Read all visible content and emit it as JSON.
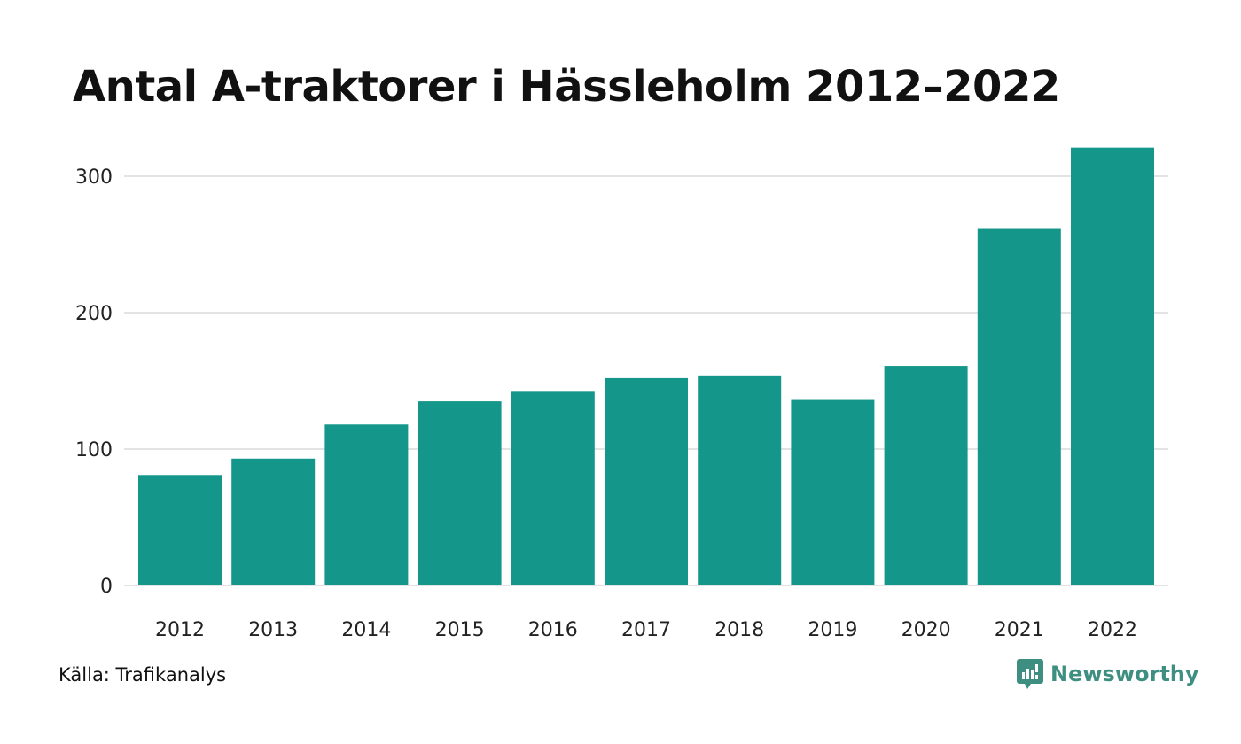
{
  "chart_data": {
    "type": "bar",
    "title": "Antal A-traktorer i Hässleholm 2012–2022",
    "categories": [
      "2012",
      "2013",
      "2014",
      "2015",
      "2016",
      "2017",
      "2018",
      "2019",
      "2020",
      "2021",
      "2022"
    ],
    "values": [
      81,
      93,
      118,
      135,
      142,
      152,
      154,
      136,
      161,
      262,
      321
    ],
    "xlabel": "",
    "ylabel": "",
    "ylim": [
      0,
      320
    ],
    "yticks": [
      0,
      100,
      200,
      300
    ],
    "grid": true,
    "bar_color": "#14978a",
    "grid_color": "#e3e3e3"
  },
  "source": "Källa: Trafikanalys",
  "brand": {
    "name": "Newsworthy",
    "icon": "newsworthy-logo-icon",
    "color": "#3e8f82"
  }
}
